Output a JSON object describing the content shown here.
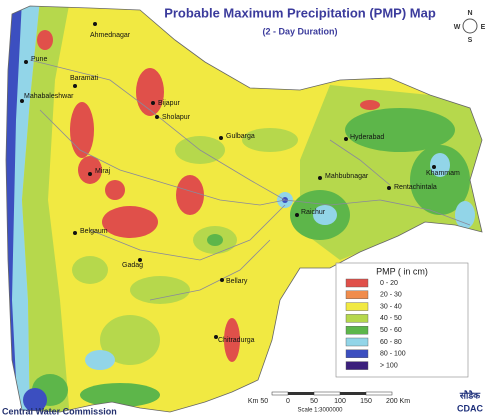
{
  "header": {
    "title": "Probable Maximum Precipitation (PMP) Map",
    "subtitle": "(2 - Day Duration)"
  },
  "compass": {
    "north": "N",
    "east": "E",
    "south": "S",
    "west": "W"
  },
  "cities": [
    "Ahmednagar",
    "Pune",
    "Baramati",
    "Mahabaleshwar",
    "Bijapur",
    "Sholapur",
    "Gulbarga",
    "Hyderabad",
    "Khammam",
    "Rentachintala",
    "Mahbubnagar",
    "Miraj",
    "Raichur",
    "Belgaum",
    "Gadag",
    "Bellary",
    "Chitradurga"
  ],
  "legend": {
    "title": "PMP ( in cm)",
    "items": [
      {
        "label": "0 - 20",
        "color": "#e0504a"
      },
      {
        "label": "20 - 30",
        "color": "#f08c4c"
      },
      {
        "label": "30 - 40",
        "color": "#f1e942"
      },
      {
        "label": "40 - 50",
        "color": "#b6d84c"
      },
      {
        "label": "50 - 60",
        "color": "#5db64a"
      },
      {
        "label": "60 - 80",
        "color": "#92d5e8"
      },
      {
        "label": "80 - 100",
        "color": "#3c4fc0"
      },
      {
        "label": "> 100",
        "color": "#3b1f7c"
      }
    ]
  },
  "scale_bar": {
    "labels": [
      "Km 50",
      "0",
      "50",
      "100",
      "150",
      "200 Km"
    ],
    "scale": "Scale 1:3000000"
  },
  "footer": {
    "organization": "Central Water Commission",
    "logo_hindi": "सौडैक",
    "logo": "CDAC"
  }
}
